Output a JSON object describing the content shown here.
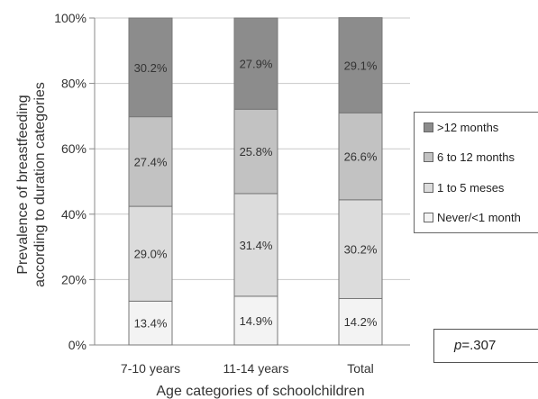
{
  "chart_data": {
    "type": "bar",
    "stacked": true,
    "categories": [
      "7-10 years",
      "11-14 years",
      "Total"
    ],
    "series": [
      {
        "name": "Never/<1 month",
        "values": [
          13.4,
          14.9,
          14.2
        ],
        "labels": [
          "13.4%",
          "14.9%",
          "14.2%"
        ],
        "color": "#f3f3f3"
      },
      {
        "name": "1 to 5 meses",
        "values": [
          29.0,
          31.4,
          30.2
        ],
        "labels": [
          "29.0%",
          "31.4%",
          "30.2%"
        ],
        "color": "#dcdcdc"
      },
      {
        "name": "6 to 12 months",
        "values": [
          27.4,
          25.8,
          26.6
        ],
        "labels": [
          "27.4%",
          "25.8%",
          "26.6%"
        ],
        "color": "#c2c2c2"
      },
      {
        "name": ">12 months",
        "values": [
          30.2,
          27.9,
          29.1
        ],
        "labels": [
          "30.2%",
          "27.9%",
          "29.1%"
        ],
        "color": "#8c8c8c"
      }
    ],
    "xlabel": "Age categories of schoolchildren",
    "ylabel_line1": "Prevalence of breastfeeding",
    "ylabel_line2": "according to duration categories",
    "ylim": [
      0,
      100
    ],
    "yticks": [
      "0%",
      "20%",
      "40%",
      "60%",
      "80%",
      "100%"
    ],
    "grid": true,
    "legend_position": "right",
    "legend_order": [
      ">12 months",
      "6 to 12 months",
      "1 to 5 meses",
      "Never/<1 month"
    ],
    "annotation_p_italic": "p",
    "annotation_p_value": "=.307"
  }
}
